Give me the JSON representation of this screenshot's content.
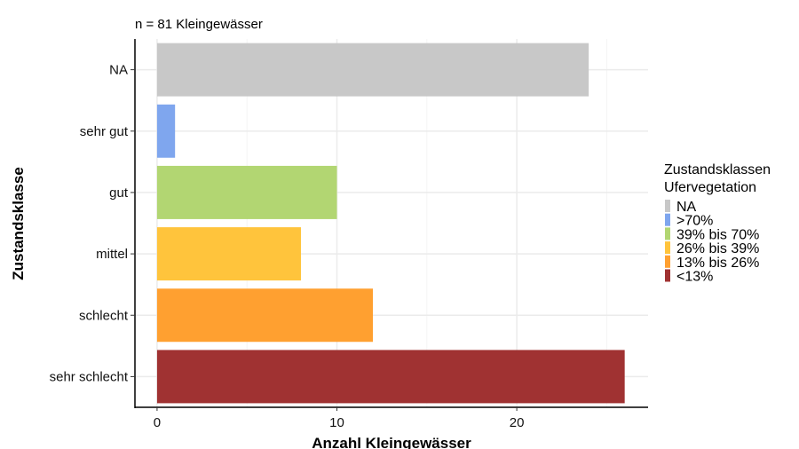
{
  "chart_data": {
    "type": "bar",
    "orientation": "horizontal",
    "subtitle": "n =  81 Kleingewässer",
    "xlabel": "Anzahl Kleingewässer",
    "ylabel": "Zustandsklasse",
    "categories": [
      "NA",
      "sehr gut",
      "gut",
      "mittel",
      "schlecht",
      "sehr schlecht"
    ],
    "values": [
      24,
      1,
      10,
      8,
      12,
      26
    ],
    "colors": [
      "#C8C8C8",
      "#7FA6EE",
      "#B2D672",
      "#FFC43C",
      "#FFA030",
      "#A03232"
    ],
    "xticks": [
      0,
      10,
      20
    ],
    "xlim": [
      -1.23,
      27.3
    ],
    "grid": true,
    "legend": {
      "title_line1": "Zustandsklassen",
      "title_line2": "Ufervegetation",
      "placement": "right",
      "entries": [
        "NA",
        ">70%",
        "39% bis 70%",
        "26% bis 39%",
        "13% bis 26%",
        "<13%"
      ]
    }
  }
}
